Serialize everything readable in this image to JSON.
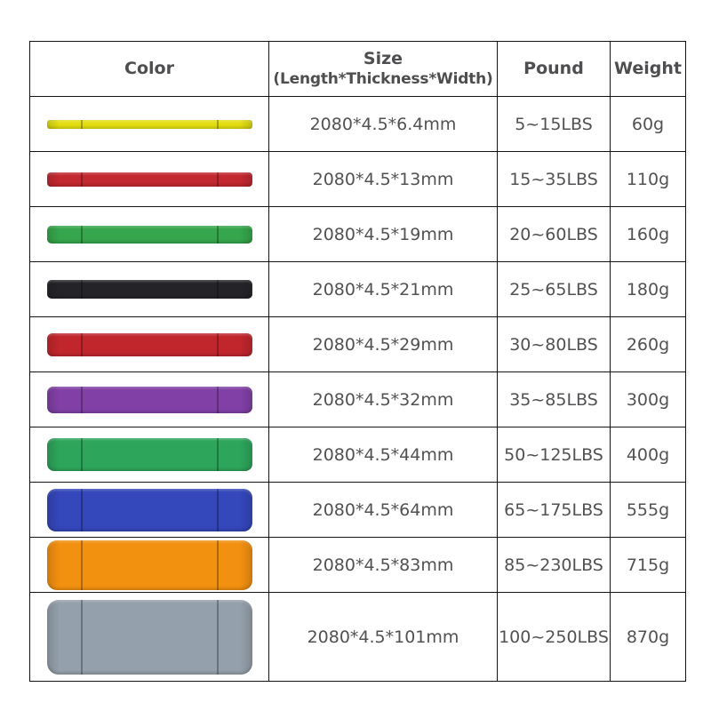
{
  "table": {
    "headers": {
      "color": "Color",
      "size_line1": "Size",
      "size_line2": "(Length*Thickness*Width)",
      "pound": "Pound",
      "weight": "Weight"
    },
    "rows": [
      {
        "color_name": "yellow",
        "band_hex": "#e3de11",
        "band_height": 10,
        "band_radius": 3,
        "size": "2080*4.5*6.4mm",
        "pound": "5~15LBS",
        "weight": "60g"
      },
      {
        "color_name": "red",
        "band_hex": "#c2282f",
        "band_height": 16,
        "band_radius": 4,
        "size": "2080*4.5*13mm",
        "pound": "15~35LBS",
        "weight": "110g"
      },
      {
        "color_name": "green",
        "band_hex": "#35a64b",
        "band_height": 20,
        "band_radius": 5,
        "size": "2080*4.5*19mm",
        "pound": "20~60LBS",
        "weight": "160g"
      },
      {
        "color_name": "black",
        "band_hex": "#242428",
        "band_height": 21,
        "band_radius": 5,
        "size": "2080*4.5*21mm",
        "pound": "25~65LBS",
        "weight": "180g"
      },
      {
        "color_name": "red",
        "band_hex": "#c1262d",
        "band_height": 26,
        "band_radius": 6,
        "size": "2080*4.5*29mm",
        "pound": "30~80LBS",
        "weight": "260g"
      },
      {
        "color_name": "purple",
        "band_hex": "#8140a6",
        "band_height": 30,
        "band_radius": 7,
        "size": "2080*4.5*32mm",
        "pound": "35~85LBS",
        "weight": "300g"
      },
      {
        "color_name": "green",
        "band_hex": "#2da55b",
        "band_height": 37,
        "band_radius": 8,
        "size": "2080*4.5*44mm",
        "pound": "50~125LBS",
        "weight": "400g"
      },
      {
        "color_name": "blue",
        "band_hex": "#3447bb",
        "band_height": 48,
        "band_radius": 10,
        "size": "2080*4.5*64mm",
        "pound": "65~175LBS",
        "weight": "555g"
      },
      {
        "color_name": "orange",
        "band_hex": "#f29010",
        "band_height": 56,
        "band_radius": 11,
        "size": "2080*4.5*83mm",
        "pound": "85~230LBS",
        "weight": "715g"
      },
      {
        "color_name": "gray",
        "band_hex": "#94a0ab",
        "band_height": 84,
        "band_radius": 13,
        "size": "2080*4.5*101mm",
        "pound": "100~250LBS",
        "weight": "870g"
      }
    ]
  }
}
